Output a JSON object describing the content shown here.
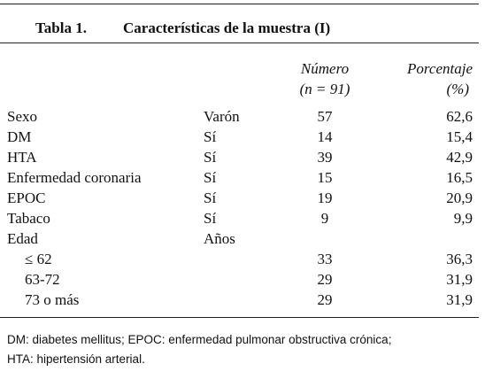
{
  "table": {
    "label": "Tabla 1.",
    "title": "Características de la muestra (I)",
    "headers": [
      [
        "Número",
        "(n = 91)"
      ],
      [
        "Porcentaje",
        "(%)"
      ]
    ],
    "rows": [
      [
        "Sexo",
        "Varón",
        "57",
        "62,6"
      ],
      [
        "DM",
        "Sí",
        "14",
        "15,4"
      ],
      [
        "HTA",
        "Sí",
        "39",
        "42,9"
      ],
      [
        "Enfermedad coronaria",
        "Sí",
        "15",
        "16,5"
      ],
      [
        "EPOC",
        "Sí",
        "19",
        "20,9"
      ],
      [
        "Tabaco",
        "Sí",
        "9",
        "9,9"
      ],
      [
        "Edad",
        "Años",
        null,
        null
      ],
      [
        "≤ 62",
        null,
        "33",
        "36,3"
      ],
      [
        "63-72",
        null,
        "29",
        "31,9"
      ],
      [
        "73 o más",
        null,
        "29",
        "31,9"
      ]
    ],
    "indented_rows": [
      7,
      8,
      9
    ],
    "footnote": [
      "DM: diabetes mellitus; EPOC: enfermedad pulmonar obstructiva crónica;",
      "HTA: hipertensión arterial."
    ]
  }
}
